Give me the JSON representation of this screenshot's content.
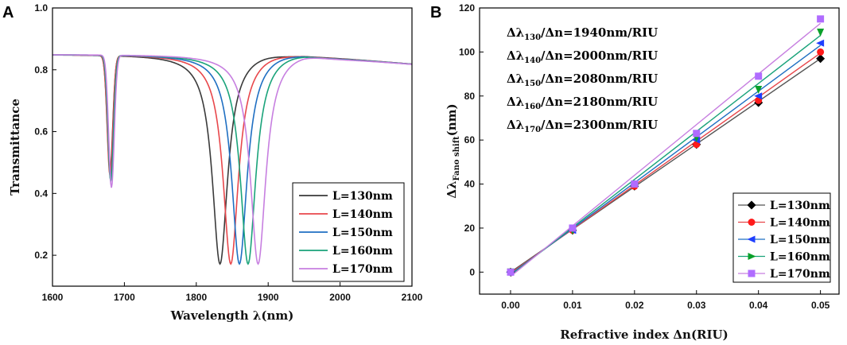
{
  "chart_data": [
    {
      "panel_label": "A",
      "type": "line",
      "xlabel": "Wavelength λ(nm)",
      "ylabel": "Transmittance",
      "xlim": [
        1600,
        2100
      ],
      "ylim": [
        0.1,
        1.0
      ],
      "xticks": [
        "1600",
        "1700",
        "1800",
        "1900",
        "2000",
        "2100"
      ],
      "yticks": [
        "0.2",
        "0.4",
        "0.6",
        "0.8",
        "1.0"
      ],
      "baseline": 0.85,
      "legend_position": "bottom-right",
      "series": [
        {
          "name": "L=130nm",
          "color": "#3a3a3a",
          "dip1_center": 1680,
          "dip1_min": 0.48,
          "dip2_center": 1833,
          "dip2_min": 0.17
        },
        {
          "name": "L=140nm",
          "color": "#e8474b",
          "dip1_center": 1680,
          "dip1_min": 0.46,
          "dip2_center": 1848,
          "dip2_min": 0.17
        },
        {
          "name": "L=150nm",
          "color": "#1f6fc2",
          "dip1_center": 1681,
          "dip1_min": 0.45,
          "dip2_center": 1860,
          "dip2_min": 0.17
        },
        {
          "name": "L=160nm",
          "color": "#1aa37a",
          "dip1_center": 1681,
          "dip1_min": 0.44,
          "dip2_center": 1872,
          "dip2_min": 0.17
        },
        {
          "name": "L=170nm",
          "color": "#c77fe0",
          "dip1_center": 1682,
          "dip1_min": 0.42,
          "dip2_center": 1886,
          "dip2_min": 0.17
        }
      ]
    },
    {
      "panel_label": "B",
      "type": "scatter",
      "xlabel": "Refractive index Δn(RIU)",
      "ylabel": "Δλ",
      "ylabel_sub": "Fano shift",
      "ylabel_suffix": "(nm)",
      "xlim": [
        -0.005,
        0.053
      ],
      "ylim": [
        -10,
        120
      ],
      "xticks": [
        "0.00",
        "0.01",
        "0.02",
        "0.03",
        "0.04",
        "0.05"
      ],
      "yticks": [
        "0",
        "20",
        "40",
        "60",
        "80",
        "100",
        "120"
      ],
      "x": [
        0.0,
        0.01,
        0.02,
        0.03,
        0.04,
        0.05
      ],
      "legend_position": "bottom-right",
      "series": [
        {
          "name": "L=130nm",
          "color": "#000000",
          "fit_color": "#555555",
          "marker": "diamond",
          "values": [
            0,
            19,
            39,
            58,
            77,
            97
          ],
          "fit": [
            0,
            97
          ]
        },
        {
          "name": "L=140nm",
          "color": "#ff1a1a",
          "fit_color": "#e8474b",
          "marker": "circle",
          "values": [
            0,
            19,
            39,
            58,
            78,
            100
          ],
          "fit": [
            -0.5,
            99.5
          ]
        },
        {
          "name": "L=150nm",
          "color": "#1f3fff",
          "fit_color": "#1f6fc2",
          "marker": "triangle-left",
          "values": [
            0,
            19,
            40,
            60,
            80,
            104
          ],
          "fit": [
            -1,
            103
          ]
        },
        {
          "name": "L=160nm",
          "color": "#0aa02a",
          "fit_color": "#1aa37a",
          "marker": "triangle-right",
          "values": [
            0,
            19,
            40,
            61,
            83,
            109
          ],
          "fit": [
            -1.5,
            107.5
          ]
        },
        {
          "name": "L=170nm",
          "color": "#ff2cf0",
          "fit_color": "#c77fe0",
          "marker": "square",
          "values": [
            0,
            20,
            40,
            63,
            89,
            115
          ],
          "fit": [
            -2,
            113
          ]
        }
      ],
      "annotations": [
        {
          "pre": "Δλ",
          "sub": "130",
          "post": "/Δn=1940nm/RIU"
        },
        {
          "pre": "Δλ",
          "sub": "140",
          "post": "/Δn=2000nm/RIU"
        },
        {
          "pre": "Δλ",
          "sub": "150",
          "post": "/Δn=2080nm/RIU"
        },
        {
          "pre": "Δλ",
          "sub": "160",
          "post": "/Δn=2180nm/RIU"
        },
        {
          "pre": "Δλ",
          "sub": "170",
          "post": "/Δn=2300nm/RIU"
        }
      ],
      "marker_fill_color": "#b06cff"
    }
  ]
}
